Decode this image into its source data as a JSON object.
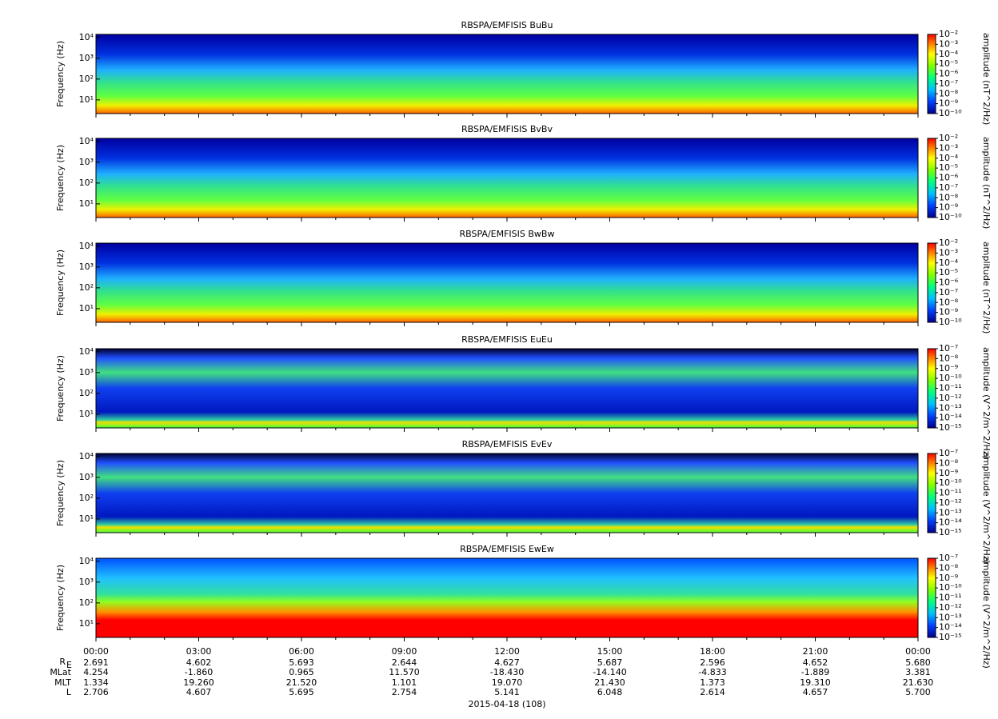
{
  "chart_data": [
    {
      "type": "spectrogram",
      "title": "RBSPA/EMFISIS  BuBu",
      "ylabel": "Frequency (Hz)",
      "yscale": "log",
      "ylim": [
        2.2,
        14000
      ],
      "yticks": [
        {
          "value": 10,
          "label": "10¹"
        },
        {
          "value": 100,
          "label": "10²"
        },
        {
          "value": 1000,
          "label": "10³"
        },
        {
          "value": 10000,
          "label": "10⁴"
        }
      ],
      "colorbar": {
        "label": "amplitude (nT^2/Hz)",
        "lim": [
          1e-10,
          0.01
        ],
        "ticks": [
          {
            "value": 0.01,
            "label": "10⁻²"
          },
          {
            "value": 0.001,
            "label": "10⁻³"
          },
          {
            "value": 0.0001,
            "label": "10⁻⁴"
          },
          {
            "value": 1e-05,
            "label": "10⁻⁵"
          },
          {
            "value": 1e-06,
            "label": "10⁻⁶"
          },
          {
            "value": 1e-07,
            "label": "10⁻⁷"
          },
          {
            "value": 1e-08,
            "label": "10⁻⁸"
          },
          {
            "value": 1e-09,
            "label": "10⁻⁹"
          },
          {
            "value": 1e-10,
            "label": "10⁻¹⁰"
          }
        ]
      }
    },
    {
      "type": "spectrogram",
      "title": "RBSPA/EMFISIS  BvBv",
      "ylabel": "Frequency (Hz)",
      "yscale": "log",
      "ylim": [
        2.2,
        14000
      ],
      "yticks": [
        {
          "value": 10,
          "label": "10¹"
        },
        {
          "value": 100,
          "label": "10²"
        },
        {
          "value": 1000,
          "label": "10³"
        },
        {
          "value": 10000,
          "label": "10⁴"
        }
      ],
      "colorbar": {
        "label": "amplitude (nT^2/Hz)",
        "lim": [
          1e-10,
          0.01
        ],
        "ticks": [
          {
            "value": 0.01,
            "label": "10⁻²"
          },
          {
            "value": 0.001,
            "label": "10⁻³"
          },
          {
            "value": 0.0001,
            "label": "10⁻⁴"
          },
          {
            "value": 1e-05,
            "label": "10⁻⁵"
          },
          {
            "value": 1e-06,
            "label": "10⁻⁶"
          },
          {
            "value": 1e-07,
            "label": "10⁻⁷"
          },
          {
            "value": 1e-08,
            "label": "10⁻⁸"
          },
          {
            "value": 1e-09,
            "label": "10⁻⁹"
          },
          {
            "value": 1e-10,
            "label": "10⁻¹⁰"
          }
        ]
      }
    },
    {
      "type": "spectrogram",
      "title": "RBSPA/EMFISIS  BwBw",
      "ylabel": "Frequency (Hz)",
      "yscale": "log",
      "ylim": [
        2.2,
        14000
      ],
      "yticks": [
        {
          "value": 10,
          "label": "10¹"
        },
        {
          "value": 100,
          "label": "10²"
        },
        {
          "value": 1000,
          "label": "10³"
        },
        {
          "value": 10000,
          "label": "10⁴"
        }
      ],
      "colorbar": {
        "label": "amplitude (nT^2/Hz)",
        "lim": [
          1e-10,
          0.01
        ],
        "ticks": [
          {
            "value": 0.01,
            "label": "10⁻²"
          },
          {
            "value": 0.001,
            "label": "10⁻³"
          },
          {
            "value": 0.0001,
            "label": "10⁻⁴"
          },
          {
            "value": 1e-05,
            "label": "10⁻⁵"
          },
          {
            "value": 1e-06,
            "label": "10⁻⁶"
          },
          {
            "value": 1e-07,
            "label": "10⁻⁷"
          },
          {
            "value": 1e-08,
            "label": "10⁻⁸"
          },
          {
            "value": 1e-09,
            "label": "10⁻⁹"
          },
          {
            "value": 1e-10,
            "label": "10⁻¹⁰"
          }
        ]
      }
    },
    {
      "type": "spectrogram",
      "title": "RBSPA/EMFISIS  EuEu",
      "ylabel": "Frequency (Hz)",
      "yscale": "log",
      "ylim": [
        2.2,
        14000
      ],
      "yticks": [
        {
          "value": 10,
          "label": "10¹"
        },
        {
          "value": 100,
          "label": "10²"
        },
        {
          "value": 1000,
          "label": "10³"
        },
        {
          "value": 10000,
          "label": "10⁴"
        }
      ],
      "colorbar": {
        "label": "amplitude (V^2/m^2/Hz)",
        "lim": [
          1e-15,
          1e-07
        ],
        "ticks": [
          {
            "value": 1e-07,
            "label": "10⁻⁷"
          },
          {
            "value": 1e-08,
            "label": "10⁻⁸"
          },
          {
            "value": 1e-09,
            "label": "10⁻⁹"
          },
          {
            "value": 1e-10,
            "label": "10⁻¹⁰"
          },
          {
            "value": 1e-11,
            "label": "10⁻¹¹"
          },
          {
            "value": 1e-12,
            "label": "10⁻¹²"
          },
          {
            "value": 1e-13,
            "label": "10⁻¹³"
          },
          {
            "value": 1e-14,
            "label": "10⁻¹⁴"
          },
          {
            "value": 1e-15,
            "label": "10⁻¹⁵"
          }
        ]
      }
    },
    {
      "type": "spectrogram",
      "title": "RBSPA/EMFISIS  EvEv",
      "ylabel": "Frequency (Hz)",
      "yscale": "log",
      "ylim": [
        2.2,
        14000
      ],
      "yticks": [
        {
          "value": 10,
          "label": "10¹"
        },
        {
          "value": 100,
          "label": "10²"
        },
        {
          "value": 1000,
          "label": "10³"
        },
        {
          "value": 10000,
          "label": "10⁴"
        }
      ],
      "colorbar": {
        "label": "amplitude (V^2/m^2/Hz)",
        "lim": [
          1e-15,
          1e-07
        ],
        "ticks": [
          {
            "value": 1e-07,
            "label": "10⁻⁷"
          },
          {
            "value": 1e-08,
            "label": "10⁻⁸"
          },
          {
            "value": 1e-09,
            "label": "10⁻⁹"
          },
          {
            "value": 1e-10,
            "label": "10⁻¹⁰"
          },
          {
            "value": 1e-11,
            "label": "10⁻¹¹"
          },
          {
            "value": 1e-12,
            "label": "10⁻¹²"
          },
          {
            "value": 1e-13,
            "label": "10⁻¹³"
          },
          {
            "value": 1e-14,
            "label": "10⁻¹⁴"
          },
          {
            "value": 1e-15,
            "label": "10⁻¹⁵"
          }
        ]
      }
    },
    {
      "type": "spectrogram",
      "title": "RBSPA/EMFISIS  EwEw",
      "ylabel": "Frequency (Hz)",
      "yscale": "log",
      "ylim": [
        2.2,
        14000
      ],
      "yticks": [
        {
          "value": 10,
          "label": "10¹"
        },
        {
          "value": 100,
          "label": "10²"
        },
        {
          "value": 1000,
          "label": "10³"
        },
        {
          "value": 10000,
          "label": "10⁴"
        }
      ],
      "colorbar": {
        "label": "amplitude (V^2/m^2/Hz)",
        "lim": [
          1e-15,
          1e-07
        ],
        "ticks": [
          {
            "value": 1e-07,
            "label": "10⁻⁷"
          },
          {
            "value": 1e-08,
            "label": "10⁻⁸"
          },
          {
            "value": 1e-09,
            "label": "10⁻⁹"
          },
          {
            "value": 1e-10,
            "label": "10⁻¹⁰"
          },
          {
            "value": 1e-11,
            "label": "10⁻¹¹"
          },
          {
            "value": 1e-12,
            "label": "10⁻¹²"
          },
          {
            "value": 1e-13,
            "label": "10⁻¹³"
          },
          {
            "value": 1e-14,
            "label": "10⁻¹⁴"
          },
          {
            "value": 1e-15,
            "label": "10⁻¹⁵"
          }
        ]
      }
    }
  ],
  "xaxis": {
    "categories": [
      "00:00",
      "03:00",
      "06:00",
      "09:00",
      "12:00",
      "15:00",
      "18:00",
      "21:00",
      "00:00"
    ],
    "date": "2015-04-18 (108)"
  },
  "ephemeris": [
    {
      "label": "R",
      "sub": "E",
      "values": [
        "2.691",
        "4.602",
        "5.693",
        "2.644",
        "4.627",
        "5.687",
        "2.596",
        "4.652",
        "5.680"
      ]
    },
    {
      "label": "MLat",
      "values": [
        "4.254",
        "-1.860",
        "0.965",
        "11.570",
        "-18.430",
        "-14.140",
        "-4.833",
        "-1.889",
        "3.381"
      ]
    },
    {
      "label": "MLT",
      "values": [
        "1.334",
        "19.260",
        "21.520",
        "1.101",
        "19.070",
        "21.430",
        "1.373",
        "19.310",
        "21.630"
      ]
    },
    {
      "label": "L",
      "values": [
        "2.706",
        "4.607",
        "5.695",
        "2.754",
        "5.141",
        "6.048",
        "2.614",
        "4.657",
        "5.700"
      ]
    }
  ]
}
